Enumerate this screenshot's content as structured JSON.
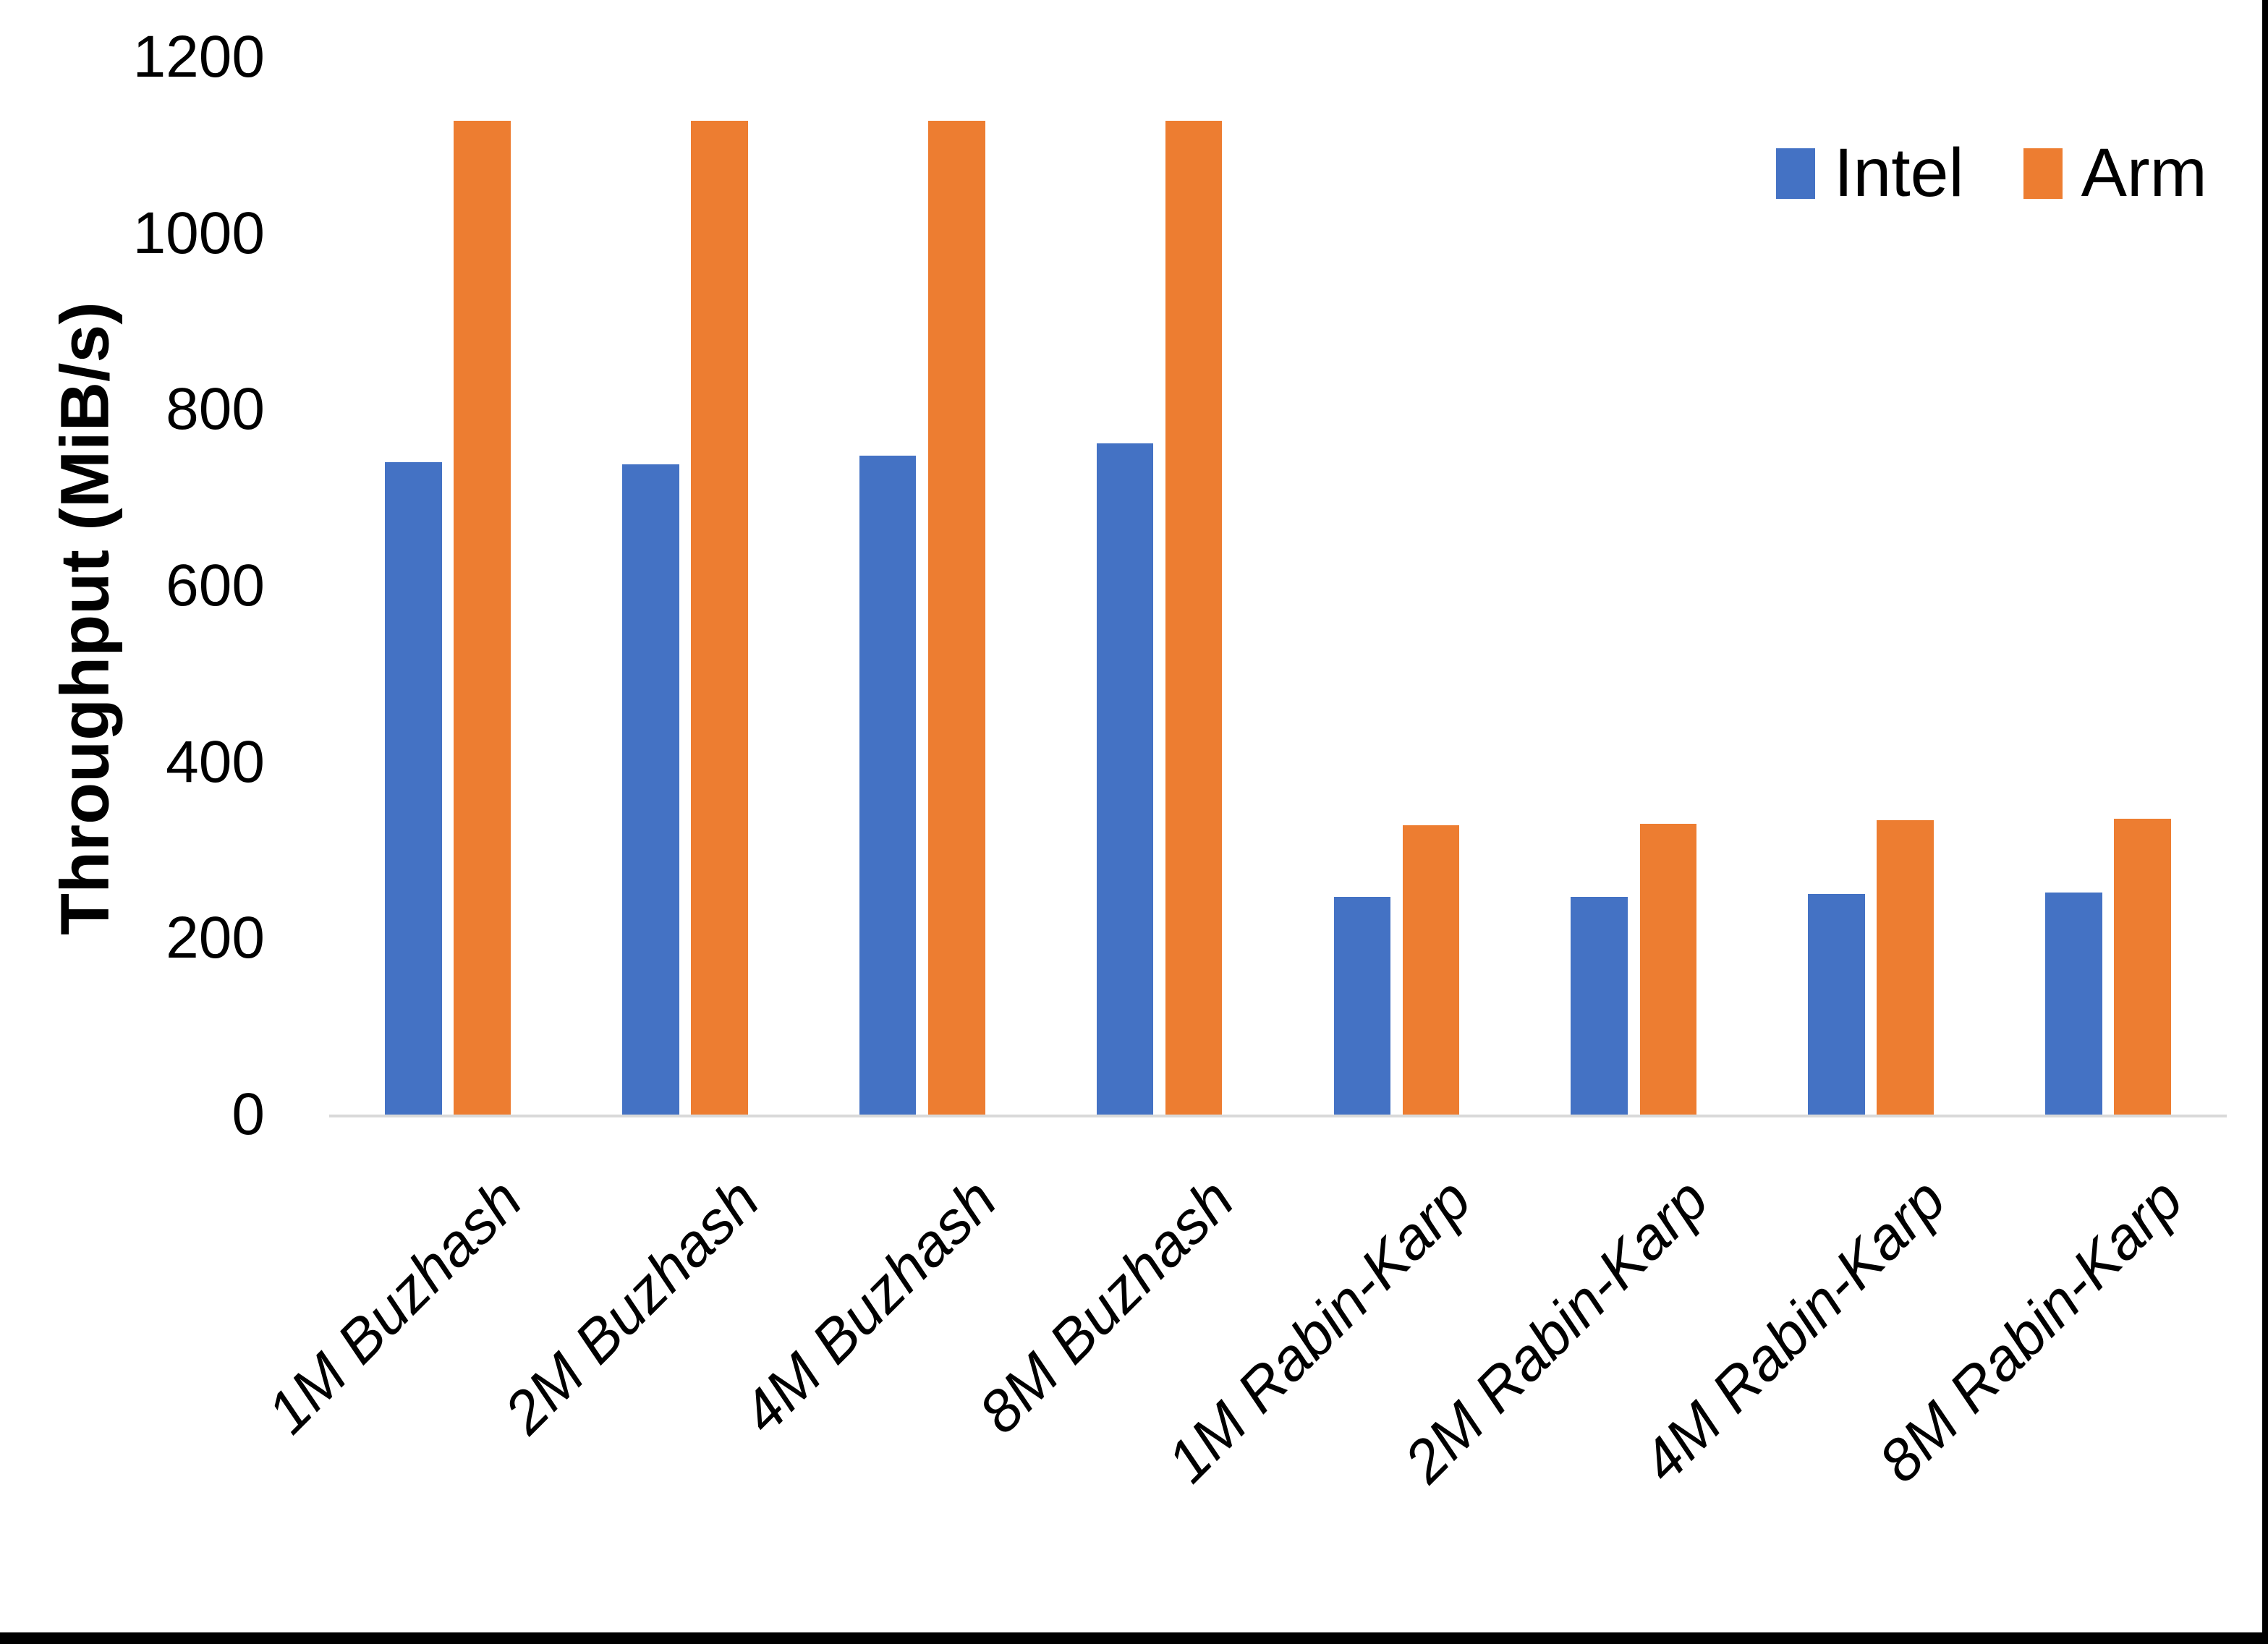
{
  "chart_data": {
    "type": "bar",
    "title": "",
    "xlabel": "",
    "ylabel": "Throughput (MiB/s)",
    "ylim": [
      0,
      1200
    ],
    "yticks": [
      0,
      200,
      400,
      600,
      800,
      1000,
      1200
    ],
    "grid": false,
    "legend_position": "top-right",
    "categories": [
      "1M Buzhash",
      "2M Buzhash",
      "4M Buzhash",
      "8M Buzhash",
      "1M Rabin-Karp",
      "2M Rabin-Karp",
      "4M Rabin-Karp",
      "8M Rabin-Karp"
    ],
    "series": [
      {
        "name": "Intel",
        "color": "#4472C4",
        "values": [
          740,
          738,
          748,
          762,
          247,
          247,
          250,
          252
        ]
      },
      {
        "name": "Arm",
        "color": "#ED7D31",
        "values": [
          1128,
          1128,
          1128,
          1128,
          328,
          330,
          334,
          336
        ]
      }
    ]
  },
  "colors": {
    "background": "#FFFFFF",
    "axis_line": "#D9D9D9",
    "text": "#000000",
    "edge_border": "#000000"
  }
}
